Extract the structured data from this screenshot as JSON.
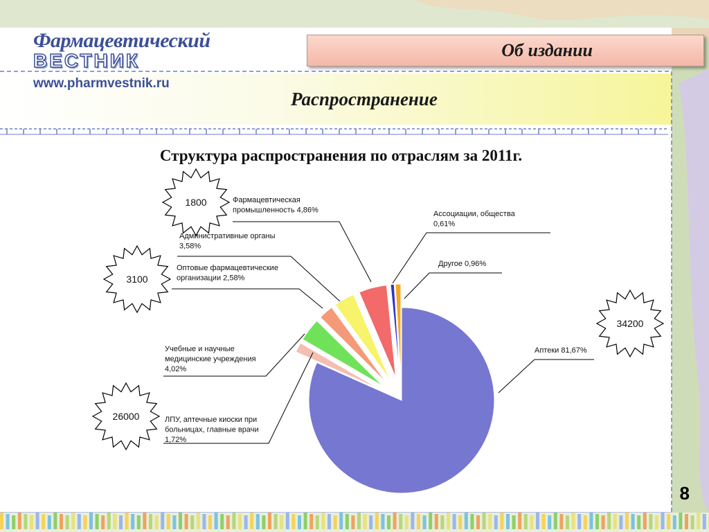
{
  "logo": {
    "line1": "Фармацевтический",
    "line2": "ВЕСТНИК",
    "line3": "www.pharmvestnik.ru"
  },
  "header": {
    "title": "Об издании"
  },
  "subheader": {
    "title": "Распространение"
  },
  "page_number": "8",
  "colors": {
    "accent_line": "#6b7fc4",
    "header_fill": "#f4b8a8",
    "band_yellow": "#f6f59a"
  },
  "chart_data": {
    "type": "pie",
    "title": "Структура распространения по отраслям за 2011г.",
    "slices": [
      {
        "label_lines": [
          "Аптеки 81,67%"
        ],
        "value": 81.67,
        "color": "#7677d1"
      },
      {
        "label_lines": [
          "ЛПУ, аптечные киоски при",
          "больницах, главные врачи",
          "1,72%"
        ],
        "value": 1.72,
        "color": "#f4bfb2"
      },
      {
        "label_lines": [
          "Учебные и научные",
          "медицинские учреждения",
          "4,02%"
        ],
        "value": 4.02,
        "color": "#6fe25a"
      },
      {
        "label_lines": [
          "Оптовые фармацевтические",
          "организации  2,58%"
        ],
        "value": 2.58,
        "color": "#f59a78"
      },
      {
        "label_lines": [
          "Административные органы",
          "3,58%"
        ],
        "value": 3.58,
        "color": "#f7f36a"
      },
      {
        "label_lines": [
          "Фармацевтическая",
          "промышленность 4,86%"
        ],
        "value": 4.86,
        "color": "#f26a6a"
      },
      {
        "label_lines": [
          "Ассоциации, общества",
          "0,61%"
        ],
        "value": 0.61,
        "color": "#3333cc"
      },
      {
        "label_lines": [
          "Другое 0,96%"
        ],
        "value": 0.96,
        "color": "#f7a823"
      }
    ],
    "callouts": [
      "1800",
      "3100",
      "34200",
      "26000"
    ]
  }
}
